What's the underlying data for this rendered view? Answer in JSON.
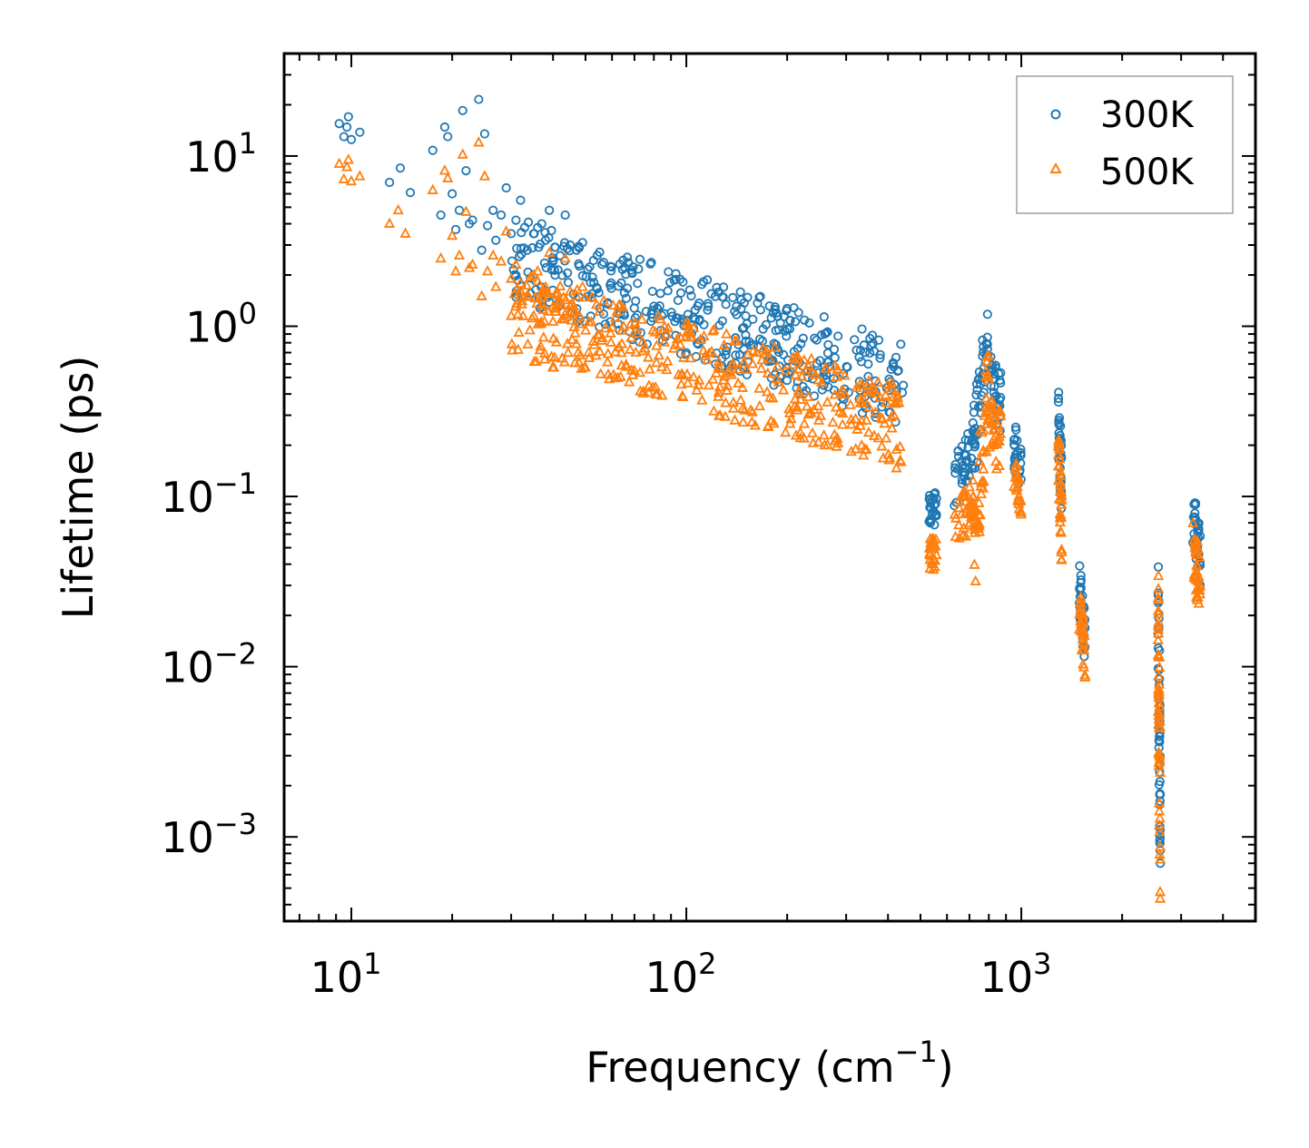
{
  "chart_data": {
    "type": "scatter",
    "title": "",
    "xlabel": "Frequency (cm",
    "xlabel_exp": "−1",
    "xlabel_suffix": ")",
    "ylabel": "Lifetime (ps)",
    "xscale": "log",
    "yscale": "log",
    "xlim": [
      6.3,
      5000
    ],
    "ylim": [
      0.00032,
      40
    ],
    "x_ticks": [
      {
        "base": "10",
        "exp": "1"
      },
      {
        "base": "10",
        "exp": "2"
      },
      {
        "base": "10",
        "exp": "3"
      }
    ],
    "y_ticks": [
      {
        "base": "10",
        "exp": "1"
      },
      {
        "base": "10",
        "exp": "0"
      },
      {
        "base": "10",
        "exp": "−1"
      },
      {
        "base": "10",
        "exp": "−2"
      },
      {
        "base": "10",
        "exp": "−3"
      }
    ],
    "legend": {
      "position": "top-right",
      "entries": [
        {
          "name": "300K",
          "marker": "circle",
          "color": "#1f77b4"
        },
        {
          "name": "500K",
          "marker": "triangle",
          "color": "#ff7f0e"
        }
      ]
    },
    "series": [
      {
        "name": "300K",
        "color": "#1f77b4",
        "marker": "circle",
        "points": [
          [
            9.2,
            15.5
          ],
          [
            9.5,
            13.0
          ],
          [
            9.8,
            17.0
          ],
          [
            10.0,
            12.5
          ],
          [
            9.7,
            14.8
          ],
          [
            10.6,
            13.8
          ],
          [
            13.0,
            7.0
          ],
          [
            14.0,
            8.5
          ],
          [
            15.0,
            6.1
          ],
          [
            17.5,
            10.8
          ],
          [
            18.5,
            4.5
          ],
          [
            19.0,
            14.8
          ],
          [
            19.4,
            13.0
          ],
          [
            20.0,
            6.0
          ],
          [
            20.5,
            3.7
          ],
          [
            21.0,
            4.8
          ],
          [
            21.5,
            18.5
          ],
          [
            22.0,
            8.2
          ],
          [
            22.5,
            4.0
          ],
          [
            23.0,
            4.2
          ],
          [
            24.0,
            21.5
          ],
          [
            24.5,
            2.8
          ],
          [
            25.0,
            13.5
          ],
          [
            25.5,
            3.9
          ],
          [
            26.5,
            4.8
          ],
          [
            27.0,
            3.2
          ],
          [
            28.0,
            4.5
          ],
          [
            29.0,
            6.5
          ],
          [
            30.0,
            3.5
          ],
          [
            31.0,
            4.2
          ],
          [
            32.0,
            5.5
          ],
          [
            33.5,
            2.8
          ],
          [
            35.0,
            3.5
          ],
          [
            36.0,
            3.8
          ],
          [
            37.0,
            4.0
          ],
          [
            38.0,
            3.2
          ],
          [
            39.0,
            4.8
          ],
          [
            40.0,
            2.4
          ],
          [
            42.0,
            2.6
          ],
          [
            43.5,
            4.5
          ],
          [
            45.0,
            3.0
          ],
          [
            47.0,
            2.8
          ],
          [
            49.0,
            3.1
          ]
        ],
        "bands": [
          {
            "x": [
              30,
              450
            ],
            "y_center_start": 2.5,
            "y_center_end": 0.45,
            "spread": 0.25,
            "count": 420
          },
          {
            "x": [
              530,
              560
            ],
            "y_center_start": 0.085,
            "y_center_end": 0.085,
            "spread": 0.1,
            "count": 25
          },
          {
            "x": [
              630,
              720
            ],
            "y_center_start": 0.12,
            "y_center_end": 0.2,
            "spread": 0.15,
            "count": 40
          },
          {
            "x": [
              720,
              800
            ],
            "y_center_start": 0.2,
            "y_center_end": 0.9,
            "spread": 0.25,
            "count": 45
          },
          {
            "x": [
              800,
              870
            ],
            "y_center_start": 0.5,
            "y_center_end": 0.35,
            "spread": 0.2,
            "count": 35
          },
          {
            "x": [
              950,
              1000
            ],
            "y_center_start": 0.2,
            "y_center_end": 0.15,
            "spread": 0.15,
            "count": 25
          },
          {
            "x": [
              1290,
              1320
            ],
            "y_center_start": 0.3,
            "y_center_end": 0.12,
            "spread": 0.2,
            "count": 35
          },
          {
            "x": [
              1490,
              1550
            ],
            "y_center_start": 0.03,
            "y_center_end": 0.014,
            "spread": 0.15,
            "count": 35
          },
          {
            "x": [
              2560,
              2600
            ],
            "y_center_start": 0.025,
            "y_center_end": 0.0015,
            "spread": 0.5,
            "count": 55
          },
          {
            "x": [
              3250,
              3420
            ],
            "y_center_start": 0.08,
            "y_center_end": 0.045,
            "spread": 0.18,
            "count": 40
          }
        ]
      },
      {
        "name": "500K",
        "color": "#ff7f0e",
        "marker": "triangle",
        "points": [
          [
            9.2,
            9.0
          ],
          [
            9.5,
            7.3
          ],
          [
            9.8,
            9.5
          ],
          [
            10.0,
            7.1
          ],
          [
            9.7,
            8.6
          ],
          [
            10.6,
            7.6
          ],
          [
            13.0,
            4.0
          ],
          [
            13.8,
            4.8
          ],
          [
            14.5,
            3.5
          ],
          [
            17.5,
            6.3
          ],
          [
            18.5,
            2.5
          ],
          [
            19.0,
            8.2
          ],
          [
            19.4,
            7.4
          ],
          [
            20.0,
            3.4
          ],
          [
            20.5,
            2.1
          ],
          [
            21.0,
            2.6
          ],
          [
            21.5,
            10.2
          ],
          [
            22.0,
            4.7
          ],
          [
            22.5,
            2.2
          ],
          [
            23.0,
            2.3
          ],
          [
            24.0,
            12.0
          ],
          [
            24.5,
            1.5
          ],
          [
            25.0,
            7.6
          ],
          [
            25.5,
            2.1
          ],
          [
            26.5,
            2.6
          ],
          [
            27.0,
            1.7
          ],
          [
            28.0,
            2.4
          ],
          [
            29.0,
            3.6
          ],
          [
            30.0,
            1.9
          ],
          [
            31.0,
            2.3
          ],
          [
            32.0,
            1.6
          ],
          [
            33.5,
            1.5
          ],
          [
            35.0,
            2.0
          ],
          [
            36.0,
            2.1
          ],
          [
            37.0,
            1.6
          ],
          [
            38.0,
            1.7
          ],
          [
            39.0,
            2.7
          ],
          [
            40.0,
            1.3
          ],
          [
            42.0,
            1.4
          ],
          [
            43.5,
            2.5
          ],
          [
            45.0,
            1.6
          ],
          [
            47.0,
            1.5
          ],
          [
            49.0,
            1.7
          ]
        ],
        "bands": [
          {
            "x": [
              30,
              450
            ],
            "y_center_start": 1.2,
            "y_center_end": 0.25,
            "spread": 0.25,
            "count": 420
          },
          {
            "x": [
              530,
              560
            ],
            "y_center_start": 0.045,
            "y_center_end": 0.045,
            "spread": 0.1,
            "count": 25
          },
          {
            "x": [
              630,
              720
            ],
            "y_center_start": 0.06,
            "y_center_end": 0.1,
            "spread": 0.15,
            "count": 40
          },
          {
            "x": [
              720,
              800
            ],
            "y_center_start": 0.04,
            "y_center_end": 0.5,
            "spread": 0.3,
            "count": 45
          },
          {
            "x": [
              800,
              870
            ],
            "y_center_start": 0.28,
            "y_center_end": 0.2,
            "spread": 0.2,
            "count": 35
          },
          {
            "x": [
              950,
              1000
            ],
            "y_center_start": 0.13,
            "y_center_end": 0.1,
            "spread": 0.12,
            "count": 25
          },
          {
            "x": [
              1290,
              1320
            ],
            "y_center_start": 0.16,
            "y_center_end": 0.065,
            "spread": 0.2,
            "count": 35
          },
          {
            "x": [
              1490,
              1550
            ],
            "y_center_start": 0.022,
            "y_center_end": 0.011,
            "spread": 0.15,
            "count": 35
          },
          {
            "x": [
              2560,
              2600
            ],
            "y_center_start": 0.018,
            "y_center_end": 0.0012,
            "spread": 0.5,
            "count": 55
          },
          {
            "x": [
              3250,
              3420
            ],
            "y_center_start": 0.05,
            "y_center_end": 0.03,
            "spread": 0.18,
            "count": 40
          }
        ]
      }
    ]
  }
}
